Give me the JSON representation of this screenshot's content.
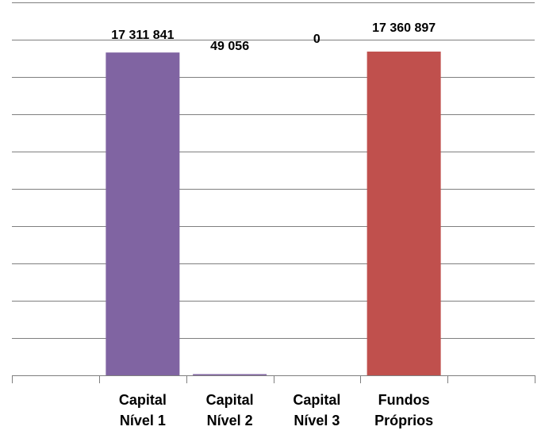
{
  "chart_data": {
    "type": "bar",
    "title": "",
    "xlabel": "",
    "ylabel": "",
    "categories": [
      [
        "Capital",
        "Nível 1"
      ],
      [
        "Capital",
        "Nível 2"
      ],
      [
        "Capital",
        "Nível 3"
      ],
      [
        "Fundos",
        "Próprios"
      ]
    ],
    "values": [
      17311841,
      49056,
      0,
      17360897
    ],
    "data_labels": [
      "17 311 841",
      "49 056",
      "0",
      "17 360 897"
    ],
    "colors": [
      "#8064A2",
      "#8064A2",
      "#8064A2",
      "#C0504D"
    ],
    "ylim": [
      0,
      20000000
    ],
    "y_gridlines": 10,
    "grid": true,
    "legend": "none",
    "y_tick_labels_visible": false
  }
}
